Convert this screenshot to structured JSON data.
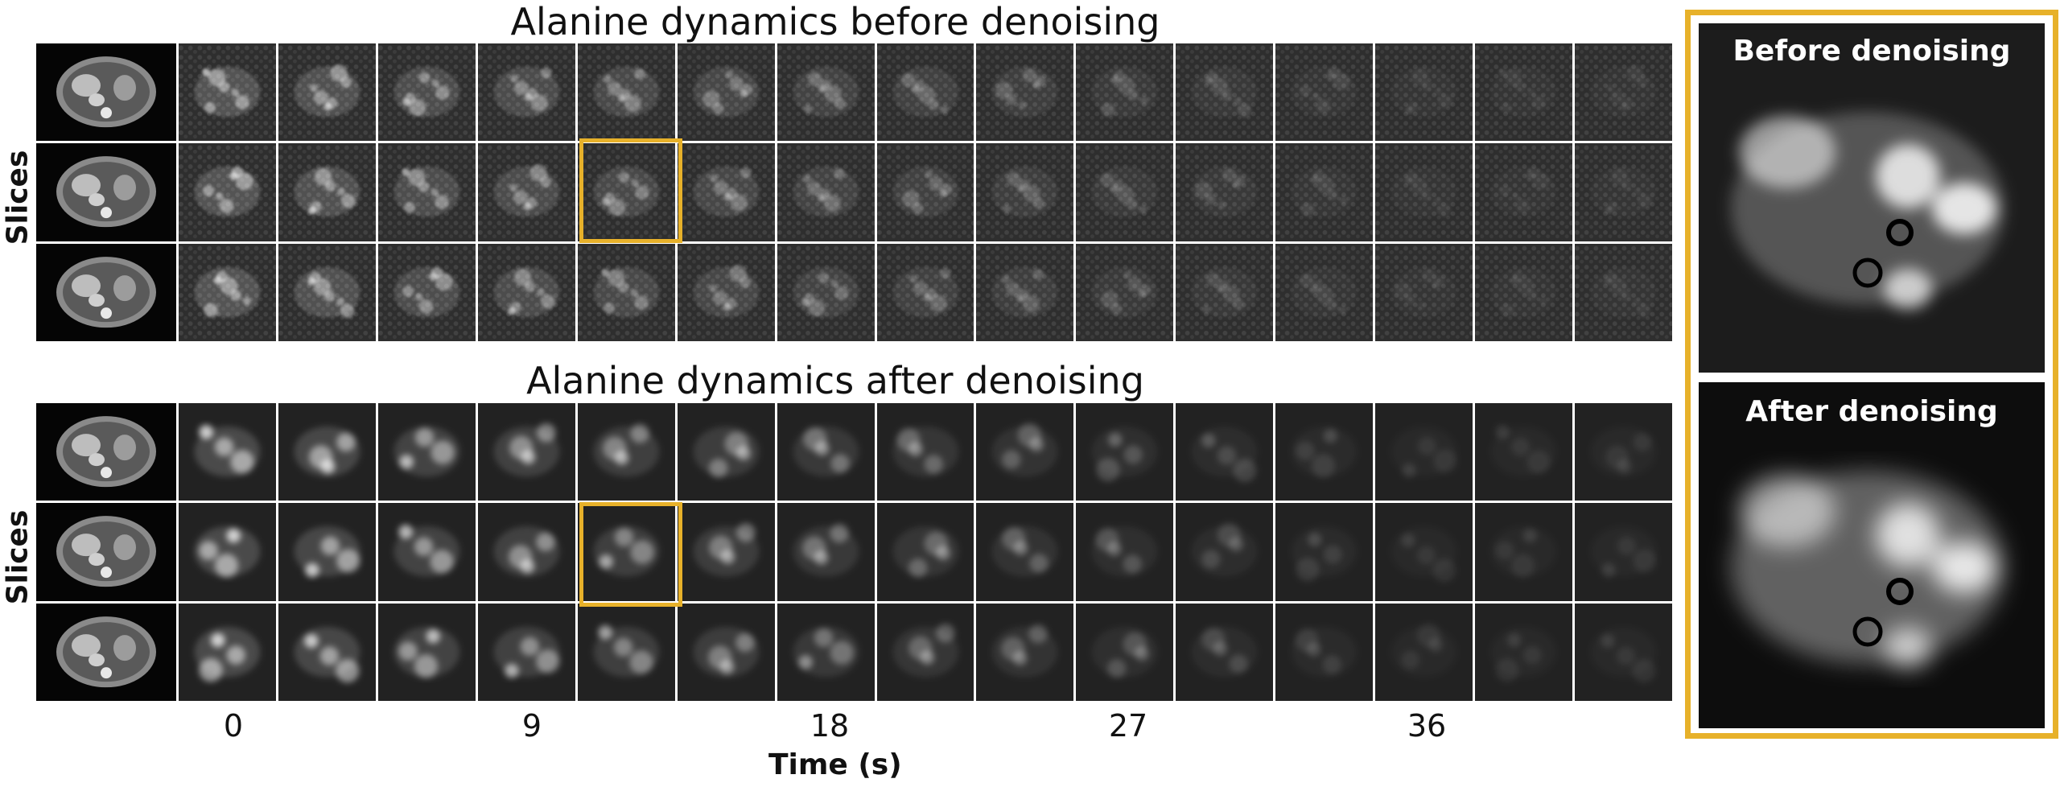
{
  "top_section": {
    "title": "Alanine dynamics before denoising"
  },
  "bottom_section": {
    "title": "Alanine dynamics after denoising"
  },
  "y_label": "Slices",
  "x_label": "Time (s)",
  "x_ticks": [
    "0",
    "9",
    "18",
    "27",
    "36"
  ],
  "grid": {
    "rows": 3,
    "time_frames": 15
  },
  "highlight": {
    "row": 2,
    "frame": 5
  },
  "zoom": {
    "before_title": "Before denoising",
    "after_title": "After denoising"
  },
  "colors": {
    "highlight": "#e7b12a"
  }
}
